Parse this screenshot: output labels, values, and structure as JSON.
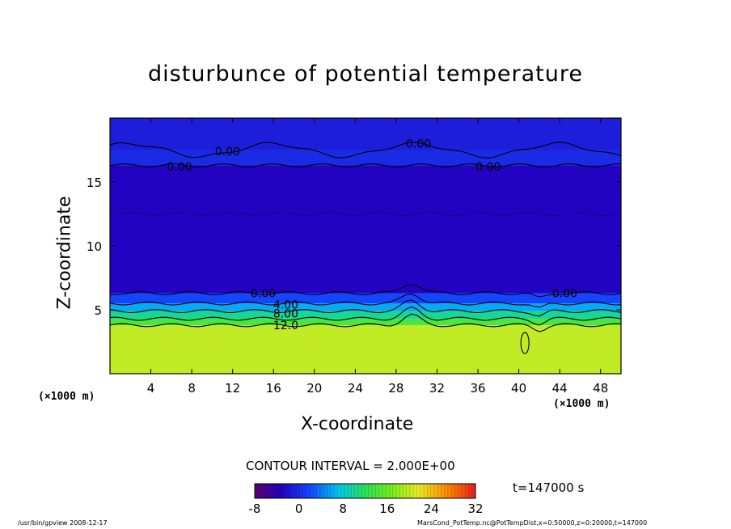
{
  "chart_data": {
    "type": "heatmap",
    "title": "disturbunce of potential temperature",
    "xlabel": "X-coordinate",
    "ylabel": "Z-coordinate",
    "x_unit_left": "(×1000 m)",
    "x_unit_right": "(×1000 m)",
    "xlim": [
      0,
      50
    ],
    "ylim": [
      0,
      20
    ],
    "x_ticks": [
      4,
      8,
      12,
      16,
      20,
      24,
      28,
      32,
      36,
      40,
      44,
      48
    ],
    "y_ticks": [
      5,
      10,
      15
    ],
    "contour_labels": [
      {
        "text": "0.00",
        "x": 11.5,
        "y": 17.4
      },
      {
        "text": "0.00",
        "x": 30.2,
        "y": 18.0
      },
      {
        "text": "0.00",
        "x": 6.8,
        "y": 16.2
      },
      {
        "text": "0.00",
        "x": 37.0,
        "y": 16.2
      },
      {
        "text": "0.00",
        "x": 15.0,
        "y": 6.3
      },
      {
        "text": "4.00",
        "x": 17.2,
        "y": 5.4
      },
      {
        "text": "8.00",
        "x": 17.2,
        "y": 4.7
      },
      {
        "text": "12.0",
        "x": 17.2,
        "y": 3.8
      },
      {
        "text": "0.00",
        "x": 44.5,
        "y": 6.3
      }
    ],
    "layers": [
      {
        "z_from": 0,
        "z_to": 3.8,
        "value": 20
      },
      {
        "z_from": 3.8,
        "z_to": 4.3,
        "value": 14
      },
      {
        "z_from": 4.3,
        "z_to": 4.9,
        "value": 10
      },
      {
        "z_from": 4.9,
        "z_to": 5.5,
        "value": 6
      },
      {
        "z_from": 5.5,
        "z_to": 6.3,
        "value": 2
      },
      {
        "z_from": 6.3,
        "z_to": 16.3,
        "value": -3
      },
      {
        "z_from": 16.3,
        "z_to": 17.5,
        "value": 0
      },
      {
        "z_from": 17.5,
        "z_to": 20,
        "value": -1
      }
    ],
    "contour_interval": "CONTOUR INTERVAL = 2.000E+00",
    "colorbar": {
      "min": -8,
      "max": 32,
      "tick_labels": [
        "-8",
        "0",
        "8",
        "16",
        "24",
        "32"
      ],
      "tick_values": [
        -8,
        0,
        8,
        16,
        24,
        32
      ]
    },
    "time_label": "t=147000 s",
    "footer_left": "/usr/bin/gpview  2008-12-17",
    "footer_right": "MarsCond_PotTemp.nc@PotTempDist,x=0:50000,z=0:20000,t=147000"
  }
}
